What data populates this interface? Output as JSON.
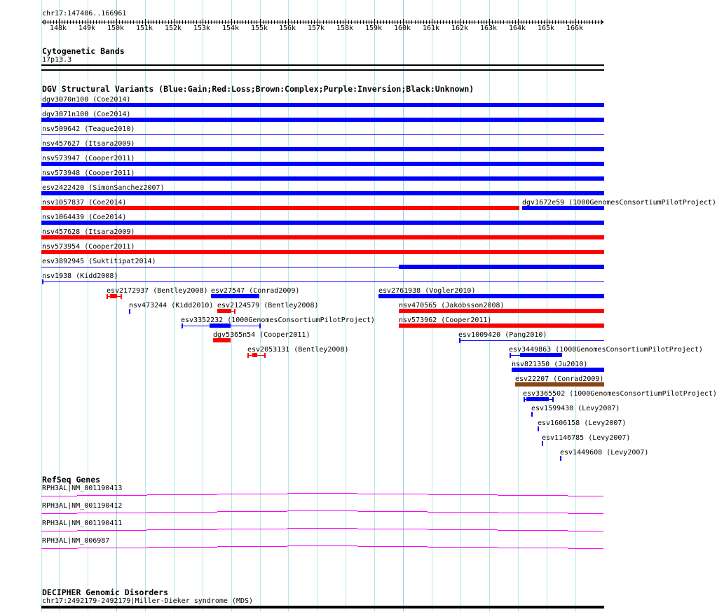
{
  "ruler": {
    "position": "chr17:147406..166961",
    "ticks": [
      "148k",
      "149k",
      "150k",
      "151k",
      "152k",
      "153k",
      "154k",
      "155k",
      "156k",
      "157k",
      "158k",
      "159k",
      "160k",
      "161k",
      "162k",
      "163k",
      "164k",
      "165k",
      "166k"
    ]
  },
  "cytobands": {
    "title": "Cytogenetic Bands",
    "band": "17p13.3"
  },
  "dgv": {
    "title": "DGV Structural Variants (Blue:Gain;Red:Loss;Brown:Complex;Purple:Inversion;Black:Unknown)",
    "colors": {
      "gain": "#0000ff",
      "loss": "#ff0000",
      "complex": "#8b4513"
    },
    "features": [
      {
        "label": "dgv3070n100 (Coe2014)",
        "type": "gain"
      },
      {
        "label": "dgv3071n100 (Coe2014)",
        "type": "gain"
      },
      {
        "label": "nsv509642 (Teague2010)",
        "type": "gain"
      },
      {
        "label": "nsv457627 (Itsara2009)",
        "type": "gain"
      },
      {
        "label": "nsv573947 (Cooper2011)",
        "type": "gain"
      },
      {
        "label": "nsv573948 (Cooper2011)",
        "type": "gain"
      },
      {
        "label": "esv2422420 (SimonSanchez2007)",
        "type": "gain"
      },
      {
        "label": "nsv1057837 (Coe2014)",
        "type": "loss"
      },
      {
        "label": "dgv1672e59 (1000GenomesConsortiumPilotProject)",
        "type": "gain"
      },
      {
        "label": "nsv1064439 (Coe2014)",
        "type": "gain"
      },
      {
        "label": "nsv457628 (Itsara2009)",
        "type": "loss"
      },
      {
        "label": "nsv573954 (Cooper2011)",
        "type": "loss"
      },
      {
        "label": "esv3892945 (Suktitipat2014)",
        "type": "gain"
      },
      {
        "label": "nsv1938 (Kidd2008)",
        "type": "gain"
      },
      {
        "label": "esv2172937 (Bentley2008)",
        "type": "loss"
      },
      {
        "label": "esv27547 (Conrad2009)",
        "type": "gain"
      },
      {
        "label": "esv2761938 (Vogler2010)",
        "type": "gain"
      },
      {
        "label": "nsv473244 (Kidd2010)",
        "type": "gain"
      },
      {
        "label": "esv2124579 (Bentley2008)",
        "type": "loss"
      },
      {
        "label": "nsv470565 (Jakobsson2008)",
        "type": "loss"
      },
      {
        "label": "esv3352232 (1000GenomesConsortiumPilotProject)",
        "type": "gain"
      },
      {
        "label": "nsv573962 (Cooper2011)",
        "type": "loss"
      },
      {
        "label": "dgv5365n54 (Cooper2011)",
        "type": "loss"
      },
      {
        "label": "esv1009420 (Pang2010)",
        "type": "gain"
      },
      {
        "label": "esv2053131 (Bentley2008)",
        "type": "loss"
      },
      {
        "label": "esv3449863 (1000GenomesConsortiumPilotProject)",
        "type": "gain"
      },
      {
        "label": "nsv821350 (Ju2010)",
        "type": "gain"
      },
      {
        "label": "esv22207 (Conrad2009)",
        "type": "complex"
      },
      {
        "label": "esv3365502 (1000GenomesConsortiumPilotProject)",
        "type": "gain"
      },
      {
        "label": "esv1599430 (Levy2007)",
        "type": "gain"
      },
      {
        "label": "esv1606158 (Levy2007)",
        "type": "gain"
      },
      {
        "label": "esv1146785 (Levy2007)",
        "type": "gain"
      },
      {
        "label": "esv1449608 (Levy2007)",
        "type": "gain"
      }
    ]
  },
  "refseq": {
    "title": "RefSeq Genes",
    "color": "#ff00ff",
    "genes": [
      "RPH3AL|NM_001190413",
      "RPH3AL|NM_001190412",
      "RPH3AL|NM_001190411",
      "RPH3AL|NM_006987"
    ]
  },
  "decipher": {
    "title": "DECIPHER Genomic Disorders",
    "feature": "chr17:2492179-2492179|Miller-Dieker syndrome (MDS)"
  }
}
